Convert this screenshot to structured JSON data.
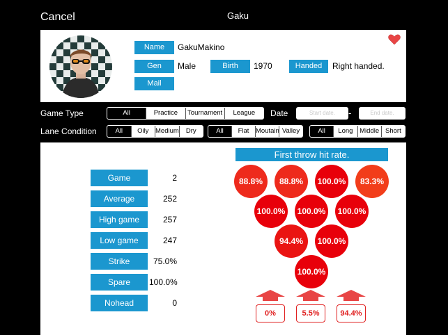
{
  "nav": {
    "cancel_label": "Cancel",
    "title": "Gaku"
  },
  "profile": {
    "name_label": "Name",
    "name_value": "GakuMakino",
    "gen_label": "Gen",
    "gen_value": "Male",
    "birth_label": "Birth",
    "birth_value": "1970",
    "handed_label": "Handed",
    "handed_value": "Right handed.",
    "mail_label": "Mail",
    "avatar_icon": "person-photo",
    "favorite_icon": "heart-icon",
    "favorite_color": "#e84545"
  },
  "filters": {
    "game_type_label": "Game Type",
    "game_type_options": [
      "All",
      "Practice",
      "Tournament",
      "League"
    ],
    "game_type_selected": "All",
    "date_label": "Date",
    "start_date_placeholder": "Start date.",
    "date_separator": "-",
    "end_date_placeholder": "End date.",
    "lane_condition_label": "Lane Condition",
    "oil_options": [
      "All",
      "Oily",
      "Medium",
      "Dry"
    ],
    "oil_selected": "All",
    "surface_options": [
      "All",
      "Flat",
      "Moutain",
      "Valley"
    ],
    "surface_selected": "All",
    "length_options": [
      "All",
      "Long",
      "Middle",
      "Short"
    ],
    "length_selected": "All"
  },
  "stats": [
    {
      "label": "Game",
      "value": "2"
    },
    {
      "label": "Average",
      "value": "252"
    },
    {
      "label": "High game",
      "value": "257"
    },
    {
      "label": "Low game",
      "value": "247"
    },
    {
      "label": "Strike",
      "value": "75.0%"
    },
    {
      "label": "Spare",
      "value": "100.0%"
    },
    {
      "label": "Nohead",
      "value": "0"
    }
  ],
  "first_throw": {
    "title": "First throw hit rate.",
    "pins": [
      {
        "pin": 7,
        "value": "88.8%",
        "color": "#ee2a1c"
      },
      {
        "pin": 8,
        "value": "88.8%",
        "color": "#ee2a1c"
      },
      {
        "pin": 9,
        "value": "100.0%",
        "color": "#e8000a"
      },
      {
        "pin": 10,
        "value": "83.3%",
        "color": "#f23d1a"
      },
      {
        "pin": 4,
        "value": "100.0%",
        "color": "#e8000a"
      },
      {
        "pin": 5,
        "value": "100.0%",
        "color": "#e8000a"
      },
      {
        "pin": 6,
        "value": "100.0%",
        "color": "#e8000a"
      },
      {
        "pin": 2,
        "value": "94.4%",
        "color": "#ea1412"
      },
      {
        "pin": 3,
        "value": "100.0%",
        "color": "#e8000a"
      },
      {
        "pin": 1,
        "value": "100.0%",
        "color": "#e8000a"
      }
    ],
    "gutter_left": "0%",
    "center": "5.5%",
    "gutter_right": "94.4%",
    "arrow_icon": "arrow-up-icon",
    "arrow_color": "#e02020"
  }
}
